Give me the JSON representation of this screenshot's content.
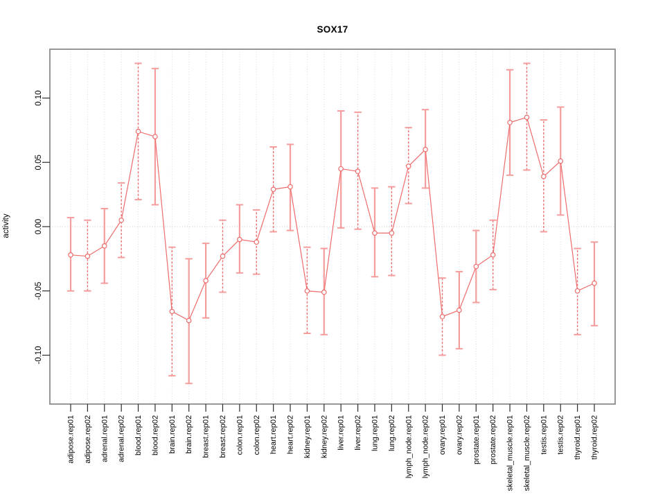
{
  "colors": {
    "bar_solid": "#f59c9c",
    "bar_dashed": "#ec6f6f",
    "cap": "#f59c9c",
    "line": "#ee6b6b",
    "point_stroke": "#ee6b6b",
    "point_fill": "#ffffff",
    "gridline": "#d9d9d9",
    "zero_line": "#d8bfbf",
    "frame": "#8a8a8a",
    "tick": "#2a2a2a",
    "text": "#000000"
  },
  "chart_data": {
    "type": "line",
    "title": "SOX17",
    "xlabel": "",
    "ylabel": "activity",
    "ylim": [
      -0.138,
      0.138
    ],
    "yticks": [
      -0.1,
      -0.05,
      0.0,
      0.05,
      0.1
    ],
    "ytick_labels": [
      "-0.10",
      "-0.05",
      "0.00",
      "0.05",
      "0.10"
    ],
    "grid": "dotted vertical gridline at every category; dotted horizontal line at y=0",
    "legend": "none",
    "marker": "open-circle",
    "categories": [
      "adipose.rep01",
      "adipose.rep02",
      "adrenal.rep01",
      "adrenal.rep02",
      "blood.rep01",
      "blood.rep02",
      "brain.rep01",
      "brain.rep02",
      "breast.rep01",
      "breast.rep02",
      "colon.rep01",
      "colon.rep02",
      "heart.rep01",
      "heart.rep02",
      "kidney.rep01",
      "kidney.rep02",
      "liver.rep01",
      "liver.rep02",
      "lung.rep01",
      "lung.rep02",
      "lymph_node.rep01",
      "lymph_node.rep02",
      "ovary.rep01",
      "ovary.rep02",
      "prostate.rep01",
      "prostate.rep02",
      "skeletal_muscle.rep01",
      "skeletal_muscle.rep02",
      "testis.rep01",
      "testis.rep02",
      "thyroid.rep01",
      "thyroid.rep02"
    ],
    "series": [
      {
        "name": "activity",
        "values": [
          -0.022,
          -0.023,
          -0.015,
          0.005,
          0.074,
          0.07,
          -0.066,
          -0.073,
          -0.042,
          -0.023,
          -0.01,
          -0.012,
          0.029,
          0.031,
          -0.05,
          -0.051,
          0.045,
          0.043,
          -0.005,
          -0.005,
          0.047,
          0.06,
          -0.07,
          -0.065,
          -0.031,
          -0.022,
          0.081,
          0.085,
          0.039,
          0.051,
          -0.05,
          -0.044
        ],
        "ci_low": [
          -0.05,
          -0.05,
          -0.044,
          -0.024,
          0.021,
          0.017,
          -0.116,
          -0.122,
          -0.071,
          -0.051,
          -0.036,
          -0.037,
          -0.004,
          -0.003,
          -0.083,
          -0.084,
          -0.001,
          -0.002,
          -0.039,
          -0.038,
          0.018,
          0.03,
          -0.1,
          -0.095,
          -0.059,
          -0.049,
          0.04,
          0.044,
          -0.004,
          0.009,
          -0.084,
          -0.077
        ],
        "ci_high": [
          0.007,
          0.005,
          0.014,
          0.034,
          0.127,
          0.123,
          -0.016,
          -0.025,
          -0.013,
          0.005,
          0.017,
          0.013,
          0.062,
          0.064,
          -0.016,
          -0.017,
          0.09,
          0.089,
          0.03,
          0.031,
          0.077,
          0.091,
          -0.04,
          -0.035,
          -0.003,
          0.005,
          0.122,
          0.127,
          0.083,
          0.093,
          -0.017,
          -0.012
        ],
        "bar_dashed": [
          false,
          true,
          false,
          true,
          true,
          false,
          true,
          false,
          false,
          true,
          false,
          true,
          true,
          false,
          true,
          false,
          false,
          true,
          false,
          true,
          true,
          false,
          true,
          false,
          false,
          true,
          false,
          true,
          true,
          false,
          true,
          false
        ]
      }
    ]
  }
}
